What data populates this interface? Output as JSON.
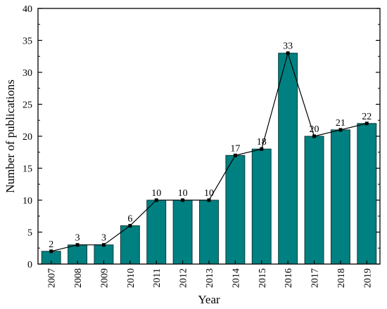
{
  "chart_data": {
    "type": "bar",
    "categories": [
      "2007",
      "2008",
      "2009",
      "2010",
      "2011",
      "2012",
      "2013",
      "2014",
      "2015",
      "2016",
      "2017",
      "2018",
      "2019"
    ],
    "values": [
      2,
      3,
      3,
      6,
      10,
      10,
      10,
      17,
      18,
      33,
      20,
      21,
      22
    ],
    "data_labels": [
      "2",
      "3",
      "3",
      "6",
      "10",
      "10",
      "10",
      "17",
      "18",
      "33",
      "20",
      "21",
      "22"
    ],
    "overlay_line": true,
    "xlabel": "Year",
    "ylabel": "Number of publications",
    "ylim": [
      0,
      40
    ],
    "yticks": [
      0,
      5,
      10,
      15,
      20,
      25,
      30,
      35,
      40
    ],
    "ytick_labels": [
      "0",
      "5",
      "10",
      "15",
      "20",
      "25",
      "30",
      "35",
      "40"
    ],
    "grid": false,
    "colors": {
      "bar": "#008080",
      "bar_edge": "#0b3b3b",
      "line": "#000000",
      "marker": "#000000"
    }
  }
}
